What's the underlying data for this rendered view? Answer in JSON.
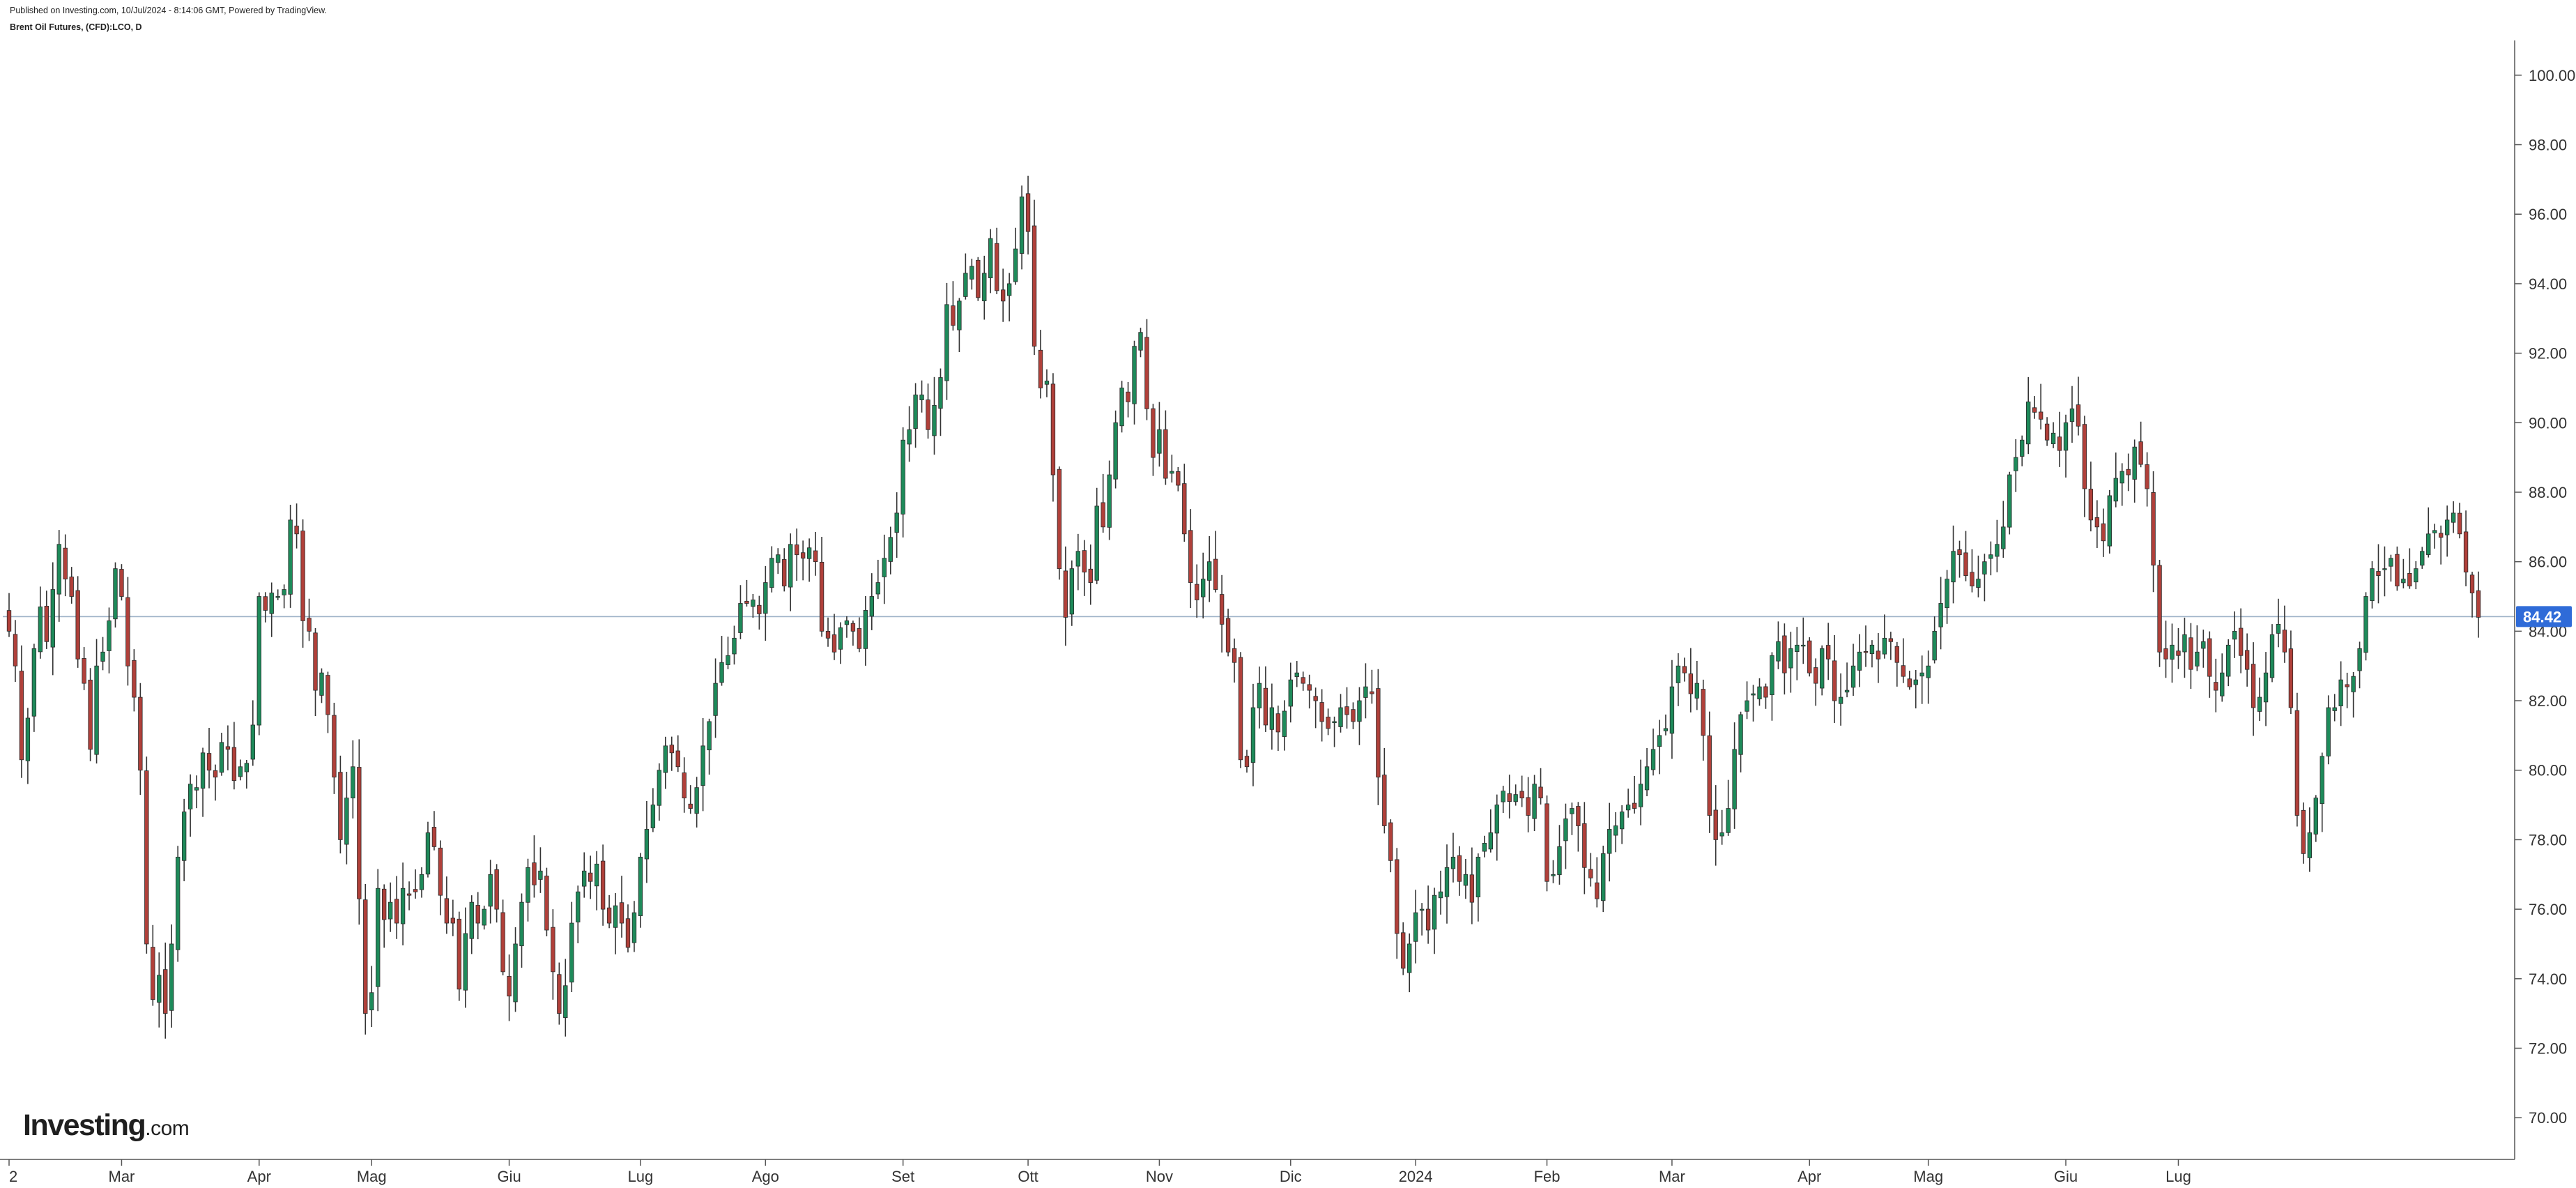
{
  "header": {
    "published": "Published on Investing.com, 10/Jul/2024 - 8:14:06 GMT, Powered by TradingView.",
    "symbol": "Brent Oil Futures, (CFD):LCO, D"
  },
  "logo": {
    "main": "Investing",
    "domain": ".com"
  },
  "colors": {
    "up": "#1e8a5a",
    "down": "#b0403a",
    "wick": "#333333",
    "price_line": "#9fb3c8",
    "price_badge": "#2f6bd8",
    "axis": "#555555"
  },
  "chart_data": {
    "type": "candlestick",
    "title": "Brent Oil Futures, (CFD):LCO, D",
    "ylim": [
      68.8,
      101.0
    ],
    "y_ticks": [
      "70.00",
      "72.00",
      "74.00",
      "76.00",
      "78.00",
      "80.00",
      "82.00",
      "84.00",
      "86.00",
      "88.00",
      "90.00",
      "92.00",
      "94.00",
      "96.00",
      "98.00",
      "100.00"
    ],
    "last_price": 84.42,
    "last_price_label": "84.42",
    "x_labels": [
      "2",
      "Mar",
      "Apr",
      "Mag",
      "Giu",
      "Lug",
      "Ago",
      "Set",
      "Ott",
      "Nov",
      "Dic",
      "2024",
      "Feb",
      "Mar",
      "Apr",
      "Mag",
      "Giu",
      "Lug"
    ],
    "x_label_bar_index": [
      0,
      18,
      40,
      58,
      80,
      101,
      121,
      143,
      163,
      184,
      205,
      225,
      246,
      266,
      288,
      307,
      329,
      347
    ],
    "closes": [
      84.0,
      83.0,
      80.3,
      81.5,
      83.5,
      84.7,
      83.7,
      85.2,
      86.5,
      85.5,
      85.0,
      83.2,
      82.5,
      80.6,
      83.0,
      83.4,
      84.3,
      85.8,
      85.0,
      83.0,
      82.1,
      80.0,
      75.0,
      73.4,
      74.1,
      73.0,
      75.0,
      77.5,
      78.8,
      79.6,
      79.5,
      80.5,
      80.0,
      79.8,
      80.8,
      80.6,
      79.7,
      80.1,
      80.2,
      81.3,
      85.0,
      84.6,
      85.1,
      85.0,
      85.2,
      87.2,
      86.8,
      84.3,
      84.0,
      82.3,
      82.8,
      81.6,
      79.8,
      78.0,
      79.2,
      80.1,
      76.3,
      73.0,
      73.6,
      76.6,
      75.7,
      76.2,
      75.6,
      76.6,
      76.4,
      76.5,
      77.0,
      78.2,
      77.8,
      76.4,
      75.6,
      75.6,
      73.7,
      75.3,
      76.2,
      75.6,
      76.0,
      77.0,
      76.0,
      74.2,
      73.5,
      75.0,
      76.2,
      77.2,
      76.7,
      77.1,
      75.4,
      74.2,
      73.0,
      73.8,
      75.6,
      76.5,
      77.1,
      76.8,
      77.3,
      76.0,
      75.6,
      76.1,
      75.6,
      74.9,
      75.9,
      77.5,
      78.3,
      79.0,
      80.0,
      80.7,
      80.5,
      80.1,
      79.2,
      78.9,
      79.5,
      80.7,
      81.4,
      82.5,
      83.1,
      83.3,
      83.8,
      84.8,
      84.8,
      84.9,
      84.5,
      85.4,
      86.1,
      86.2,
      85.3,
      86.5,
      86.2,
      86.1,
      86.4,
      86.0,
      84.0,
      83.8,
      83.4,
      84.1,
      84.3,
      84.0,
      83.5,
      84.6,
      85.0,
      85.4,
      86.1,
      86.7,
      87.4,
      89.5,
      89.8,
      90.8,
      90.8,
      89.8,
      90.5,
      91.3,
      93.4,
      92.8,
      93.5,
      94.3,
      94.5,
      93.6,
      94.3,
      95.3,
      93.8,
      93.5,
      94.0,
      95.0,
      96.5,
      95.5,
      92.2,
      91.0,
      91.2,
      88.5,
      85.8,
      84.4,
      85.8,
      86.3,
      85.7,
      85.4,
      87.6,
      87.0,
      88.5,
      90.0,
      91.0,
      90.6,
      92.2,
      92.6,
      90.4,
      89.0,
      89.8,
      88.4,
      88.6,
      88.2,
      86.8,
      85.4,
      84.9,
      85.5,
      86.0,
      85.2,
      84.2,
      83.4,
      83.1,
      80.3,
      80.1,
      81.8,
      82.5,
      81.3,
      81.8,
      81.1,
      81.7,
      82.6,
      82.8,
      82.5,
      82.3,
      82.0,
      81.4,
      81.2,
      81.4,
      81.8,
      81.6,
      81.4,
      82.0,
      82.4,
      82.2,
      79.8,
      78.4,
      77.4,
      75.3,
      74.3,
      75.0,
      75.9,
      76.0,
      75.4,
      76.4,
      76.5,
      77.2,
      77.5,
      76.8,
      77.0,
      76.2,
      77.5,
      77.9,
      78.2,
      79.0,
      79.4,
      79.1,
      79.3,
      79.2,
      78.7,
      79.6,
      79.2,
      76.8,
      77.0,
      77.8,
      78.6,
      78.9,
      78.4,
      77.2,
      76.9,
      76.3,
      77.6,
      78.3,
      78.4,
      78.8,
      79.0,
      78.9,
      79.6,
      80.1,
      80.6,
      81.0,
      81.2,
      82.4,
      83.0,
      82.8,
      82.2,
      82.5,
      81.0,
      78.7,
      78.0,
      78.2,
      78.9,
      80.6,
      81.6,
      82.0,
      82.2,
      82.4,
      82.1,
      83.3,
      83.7,
      82.8,
      83.5,
      83.6,
      83.6,
      82.8,
      82.5,
      83.5,
      83.2,
      82.0,
      82.1,
      82.3,
      83.0,
      83.4,
      83.4,
      83.6,
      83.2,
      83.8,
      83.7,
      83.1,
      82.7,
      82.4,
      82.6,
      82.8,
      83.0,
      84.0,
      84.8,
      85.5,
      86.3,
      86.2,
      85.6,
      85.3,
      85.5,
      86.0,
      86.2,
      86.5,
      87.0,
      88.5,
      89.0,
      89.5,
      90.6,
      90.3,
      90.1,
      89.5,
      89.7,
      89.2,
      90.0,
      90.4,
      89.9,
      88.1,
      87.2,
      87.0,
      86.6,
      87.9,
      88.4,
      88.6,
      88.5,
      89.3,
      88.8,
      88.1,
      85.9,
      83.4,
      83.2,
      83.6,
      83.3,
      83.9,
      82.9,
      83.4,
      83.7,
      82.7,
      82.3,
      82.8,
      83.6,
      84.0,
      83.3,
      82.9,
      81.8,
      82.1,
      82.8,
      83.9,
      84.2,
      83.4,
      81.8,
      78.7,
      77.6,
      78.2,
      79.2,
      80.4,
      81.8,
      81.8,
      82.6,
      82.4,
      82.7,
      83.5,
      85.0,
      85.8,
      85.6,
      85.8,
      86.1,
      85.3,
      85.5,
      85.3,
      85.8,
      86.3,
      86.8,
      86.9,
      86.7,
      87.2,
      87.4,
      86.8,
      85.7,
      85.1,
      84.4
    ]
  }
}
